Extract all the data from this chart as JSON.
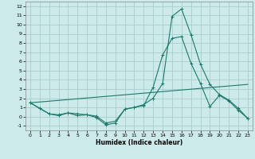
{
  "xlabel": "Humidex (Indice chaleur)",
  "bg_color": "#cceaea",
  "grid_color": "#aacccc",
  "line_color": "#1a7a6a",
  "xlim": [
    -0.5,
    23.5
  ],
  "ylim": [
    -1.5,
    12.5
  ],
  "xticks": [
    0,
    1,
    2,
    3,
    4,
    5,
    6,
    7,
    8,
    9,
    10,
    11,
    12,
    13,
    14,
    15,
    16,
    17,
    18,
    19,
    20,
    21,
    22,
    23
  ],
  "yticks": [
    -1,
    0,
    1,
    2,
    3,
    4,
    5,
    6,
    7,
    8,
    9,
    10,
    11,
    12
  ],
  "line1_x": [
    0,
    1,
    2,
    3,
    4,
    5,
    6,
    7,
    8,
    9,
    10,
    11,
    12,
    13,
    14,
    15,
    16,
    17,
    18,
    19,
    20,
    21,
    22,
    23
  ],
  "line1_y": [
    1.5,
    0.9,
    0.3,
    0.1,
    0.4,
    0.1,
    0.2,
    -0.1,
    -0.9,
    -0.7,
    0.8,
    1.0,
    1.2,
    3.2,
    6.7,
    8.5,
    8.7,
    5.8,
    3.6,
    1.1,
    2.3,
    1.7,
    0.7,
    -0.2
  ],
  "line2_x": [
    0,
    1,
    2,
    3,
    4,
    5,
    6,
    7,
    8,
    9,
    10,
    11,
    12,
    13,
    14,
    15,
    16,
    17,
    18,
    19,
    20,
    21,
    22,
    23
  ],
  "line2_y": [
    1.5,
    0.9,
    0.3,
    0.2,
    0.4,
    0.3,
    0.2,
    0.05,
    -0.7,
    -0.5,
    0.8,
    1.0,
    1.3,
    2.0,
    3.6,
    10.9,
    11.7,
    8.9,
    5.7,
    3.5,
    2.4,
    1.8,
    0.9,
    -0.2
  ],
  "line3_x": [
    0,
    23
  ],
  "line3_y": [
    1.5,
    3.5
  ]
}
